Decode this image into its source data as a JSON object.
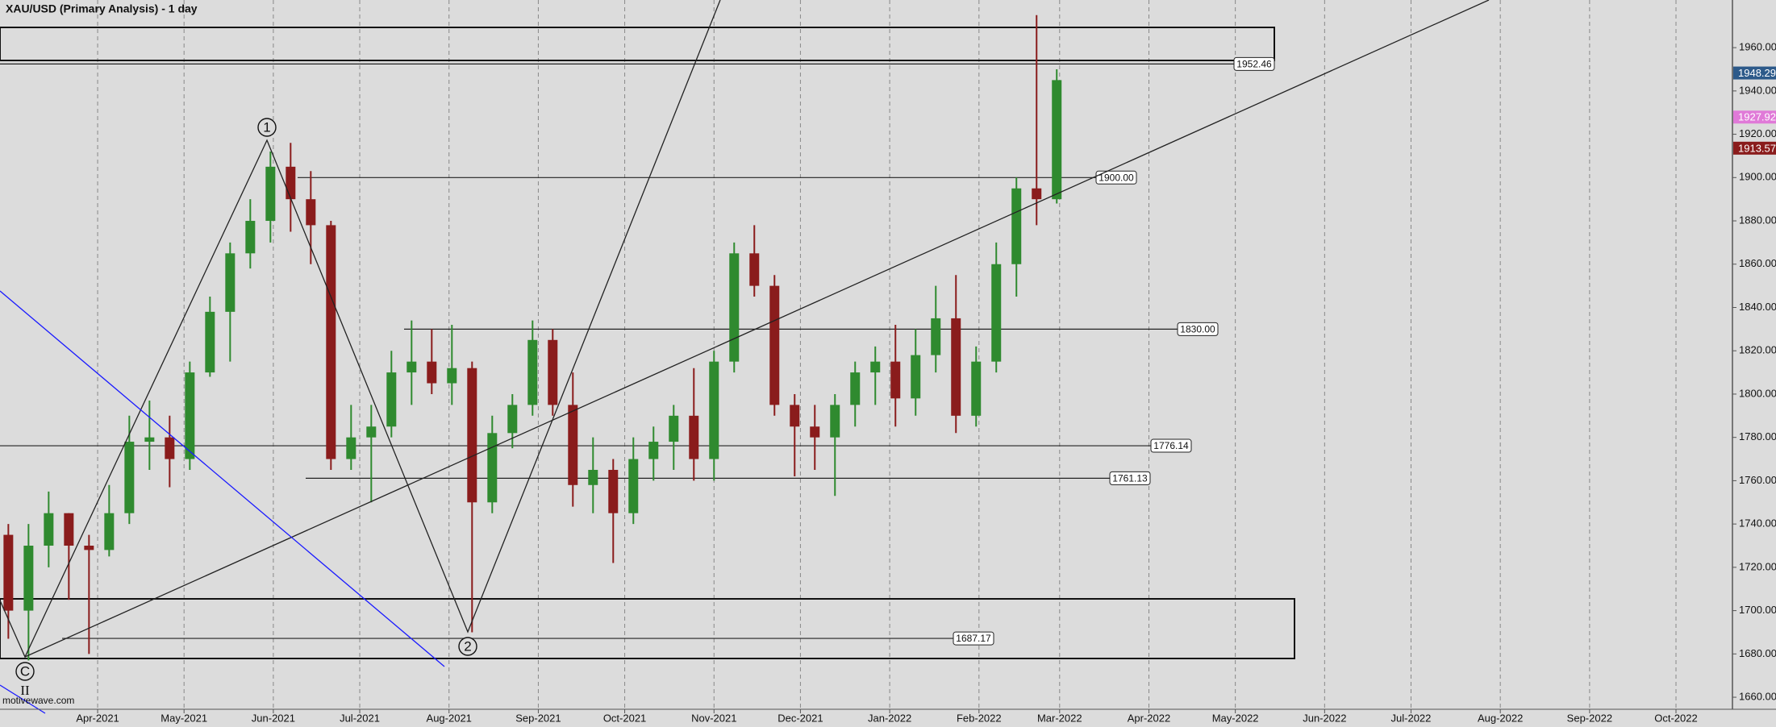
{
  "chart_data": {
    "type": "candlestick",
    "title": "XAU/USD (Primary Analysis) - 1 day",
    "watermark": "motivewave.com",
    "annotations": [
      "1",
      "2",
      "C",
      "II"
    ],
    "x": [
      0,
      7,
      14,
      21,
      28,
      35,
      42,
      49,
      56,
      63,
      70,
      77,
      84,
      91,
      98,
      105,
      112,
      119,
      126,
      133,
      140,
      147,
      154,
      161,
      168,
      175,
      182,
      189,
      196,
      203,
      210,
      217,
      224,
      231,
      238,
      245,
      252,
      259,
      266,
      273,
      280,
      287,
      294,
      301,
      308,
      315,
      322,
      329,
      336,
      343,
      350,
      357,
      364
    ],
    "open": [
      1735,
      1700,
      1730,
      1745,
      1730,
      1728,
      1745,
      1778,
      1780,
      1770,
      1810,
      1838,
      1865,
      1880,
      1905,
      1890,
      1878,
      1770,
      1780,
      1785,
      1810,
      1815,
      1805,
      1812,
      1750,
      1782,
      1795,
      1825,
      1795,
      1758,
      1765,
      1745,
      1770,
      1778,
      1790,
      1770,
      1815,
      1865,
      1850,
      1795,
      1785,
      1780,
      1795,
      1810,
      1815,
      1798,
      1818,
      1835,
      1790,
      1815,
      1860,
      1895,
      1890
    ],
    "high": [
      1740,
      1740,
      1755,
      1745,
      1735,
      1758,
      1790,
      1797,
      1790,
      1815,
      1845,
      1870,
      1890,
      1912,
      1916,
      1903,
      1880,
      1795,
      1795,
      1820,
      1834,
      1830,
      1832,
      1815,
      1790,
      1800,
      1834,
      1830,
      1810,
      1780,
      1770,
      1780,
      1785,
      1795,
      1812,
      1820,
      1870,
      1878,
      1855,
      1800,
      1795,
      1800,
      1815,
      1822,
      1832,
      1830,
      1850,
      1855,
      1822,
      1870,
      1900,
      1975,
      1950
    ],
    "low": [
      1687,
      1677,
      1720,
      1705,
      1680,
      1725,
      1740,
      1765,
      1757,
      1765,
      1808,
      1815,
      1858,
      1870,
      1875,
      1860,
      1765,
      1765,
      1750,
      1780,
      1795,
      1800,
      1795,
      1690,
      1745,
      1775,
      1790,
      1790,
      1748,
      1745,
      1722,
      1740,
      1760,
      1765,
      1760,
      1760,
      1810,
      1845,
      1790,
      1762,
      1765,
      1753,
      1785,
      1795,
      1785,
      1790,
      1810,
      1782,
      1785,
      1810,
      1845,
      1878,
      1888
    ],
    "close": [
      1700,
      1730,
      1745,
      1730,
      1728,
      1745,
      1778,
      1780,
      1770,
      1810,
      1838,
      1865,
      1880,
      1905,
      1890,
      1878,
      1770,
      1780,
      1785,
      1810,
      1815,
      1805,
      1812,
      1750,
      1782,
      1795,
      1825,
      1795,
      1758,
      1765,
      1745,
      1770,
      1778,
      1790,
      1770,
      1815,
      1865,
      1850,
      1795,
      1785,
      1780,
      1795,
      1810,
      1815,
      1798,
      1818,
      1835,
      1790,
      1815,
      1860,
      1895,
      1890,
      1945
    ],
    "up_color": "#2f8a2f",
    "down_color": "#8a1c1c",
    "xlim": [
      -2.9,
      598.6
    ],
    "xticks": [
      {
        "value": 31,
        "label": "Apr-2021"
      },
      {
        "value": 61,
        "label": "May-2021"
      },
      {
        "value": 92,
        "label": "Jun-2021"
      },
      {
        "value": 122,
        "label": "Jul-2021"
      },
      {
        "value": 153,
        "label": "Aug-2021"
      },
      {
        "value": 184,
        "label": "Sep-2021"
      },
      {
        "value": 214,
        "label": "Oct-2021"
      },
      {
        "value": 245,
        "label": "Nov-2021"
      },
      {
        "value": 275,
        "label": "Dec-2021"
      },
      {
        "value": 306,
        "label": "Jan-2022"
      },
      {
        "value": 337,
        "label": "Feb-2022"
      },
      {
        "value": 365,
        "label": "Mar-2022"
      },
      {
        "value": 396,
        "label": "Apr-2022"
      },
      {
        "value": 426,
        "label": "May-2022"
      },
      {
        "value": 457,
        "label": "Jun-2022"
      },
      {
        "value": 487,
        "label": "Jul-2022"
      },
      {
        "value": 518,
        "label": "Aug-2022"
      },
      {
        "value": 549,
        "label": "Sep-2022"
      },
      {
        "value": 579,
        "label": "Oct-2022"
      }
    ],
    "ylim": [
      1656.3,
      1982
    ],
    "yticks": [
      {
        "value": 1660,
        "label": "1660.00"
      },
      {
        "value": 1680,
        "label": "1680.00"
      },
      {
        "value": 1700,
        "label": "1700.00"
      },
      {
        "value": 1720,
        "label": "1720.00"
      },
      {
        "value": 1740,
        "label": "1740.00"
      },
      {
        "value": 1760,
        "label": "1760.00"
      },
      {
        "value": 1780,
        "label": "1780.00"
      },
      {
        "value": 1800,
        "label": "1800.00"
      },
      {
        "value": 1820,
        "label": "1820.00"
      },
      {
        "value": 1840,
        "label": "1840.00"
      },
      {
        "value": 1860,
        "label": "1860.00"
      },
      {
        "value": 1880,
        "label": "1880.00"
      },
      {
        "value": 1900,
        "label": "1900.00"
      },
      {
        "value": 1920,
        "label": "1920.00"
      },
      {
        "value": 1940,
        "label": "1940.00"
      },
      {
        "value": 1960,
        "label": "1960.00"
      }
    ],
    "levels": {
      "values": [
        1952.46,
        1900,
        1830,
        1776.14,
        1761.13,
        1687.17
      ],
      "value_labels": [
        "1952.46",
        "1900.00",
        "1830.00",
        "1776.14",
        "1761.13",
        "1687.17"
      ]
    },
    "price_markers": {
      "values": [
        1948.29,
        1927.92,
        1913.57
      ],
      "colors": [
        "#2d5a8a",
        "#e07ad8",
        "#8a1c1c"
      ]
    },
    "grid": true
  }
}
